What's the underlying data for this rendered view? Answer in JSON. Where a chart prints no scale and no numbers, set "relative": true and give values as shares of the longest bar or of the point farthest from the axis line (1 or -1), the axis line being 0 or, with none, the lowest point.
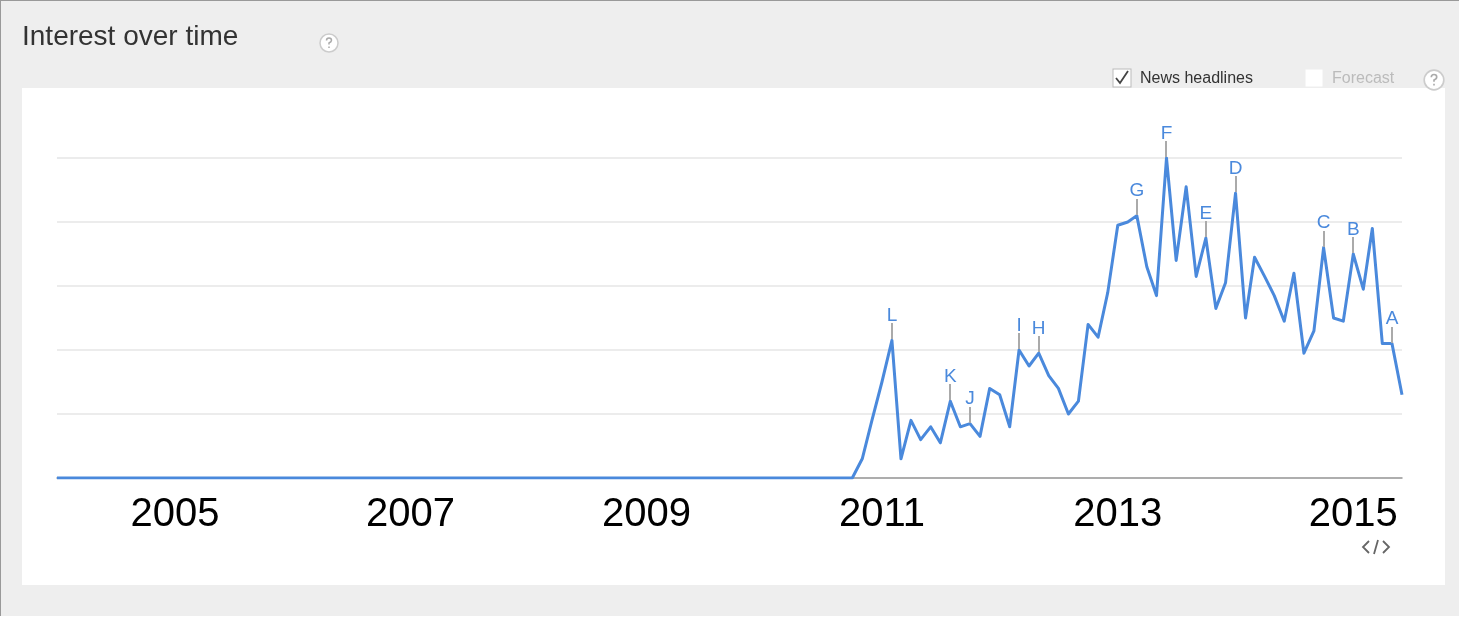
{
  "chart_data": {
    "type": "line",
    "title": "Interest over time",
    "relative": true,
    "grid": "y",
    "marker": "none",
    "line_style": "solid",
    "xlim": [
      "2004-01",
      "2015-06"
    ],
    "xticks": [
      {
        "value": "2005-01",
        "label": "2005"
      },
      {
        "value": "2007-01",
        "label": "2007"
      },
      {
        "value": "2009-01",
        "label": "2009"
      },
      {
        "value": "2011-01",
        "label": "2011"
      },
      {
        "value": "2013-01",
        "label": "2013"
      },
      {
        "value": "2015-01",
        "label": "2015"
      }
    ],
    "series": [
      {
        "color": "#4a89dc",
        "x": [
          "2004-01",
          "2010-10",
          "2010-11",
          "2010-12",
          "2011-01",
          "2011-02",
          "2011-03",
          "2011-04",
          "2011-05",
          "2011-06",
          "2011-07",
          "2011-08",
          "2011-09",
          "2011-10",
          "2011-11",
          "2011-12",
          "2012-01",
          "2012-02",
          "2012-03",
          "2012-04",
          "2012-05",
          "2012-06",
          "2012-07",
          "2012-08",
          "2012-09",
          "2012-10",
          "2012-11",
          "2012-12",
          "2013-01",
          "2013-02",
          "2013-03",
          "2013-04",
          "2013-05",
          "2013-06",
          "2013-07",
          "2013-08",
          "2013-09",
          "2013-10",
          "2013-11",
          "2013-12",
          "2014-01",
          "2014-02",
          "2014-03",
          "2014-04",
          "2014-05",
          "2014-06",
          "2014-07",
          "2014-08",
          "2014-09",
          "2014-10",
          "2014-11",
          "2014-12",
          "2015-01",
          "2015-02",
          "2015-03",
          "2015-04",
          "2015-05",
          "2015-06"
        ],
        "values": [
          0,
          0,
          0.06,
          0.18,
          0.3,
          0.43,
          0.06,
          0.18,
          0.12,
          0.16,
          0.11,
          0.24,
          0.16,
          0.17,
          0.13,
          0.28,
          0.26,
          0.16,
          0.4,
          0.35,
          0.39,
          0.32,
          0.28,
          0.2,
          0.24,
          0.48,
          0.44,
          0.58,
          0.79,
          0.8,
          0.82,
          0.66,
          0.57,
          1.0,
          0.68,
          0.91,
          0.63,
          0.75,
          0.53,
          0.61,
          0.89,
          0.5,
          0.69,
          0.63,
          0.57,
          0.49,
          0.64,
          0.39,
          0.46,
          0.72,
          0.5,
          0.49,
          0.7,
          0.59,
          0.78,
          0.42,
          0.42,
          0.26
        ]
      }
    ],
    "annotations": [
      "News headlines",
      "Forecast",
      {
        "text": "A",
        "x": "2015-05",
        "y": 0.42
      },
      {
        "text": "B",
        "x": "2015-01",
        "y": 0.7
      },
      {
        "text": "C",
        "x": "2014-10",
        "y": 0.72
      },
      {
        "text": "D",
        "x": "2014-01",
        "y": 0.89
      },
      {
        "text": "E",
        "x": "2013-10",
        "y": 0.75
      },
      {
        "text": "F",
        "x": "2013-06",
        "y": 1.0
      },
      {
        "text": "G",
        "x": "2013-03",
        "y": 0.82
      },
      {
        "text": "H",
        "x": "2012-05",
        "y": 0.39
      },
      {
        "text": "I",
        "x": "2012-03",
        "y": 0.4
      },
      {
        "text": "J",
        "x": "2011-10",
        "y": 0.17
      },
      {
        "text": "K",
        "x": "2011-08",
        "y": 0.24
      },
      {
        "text": "L",
        "x": "2011-02",
        "y": 0.43
      }
    ]
  }
}
